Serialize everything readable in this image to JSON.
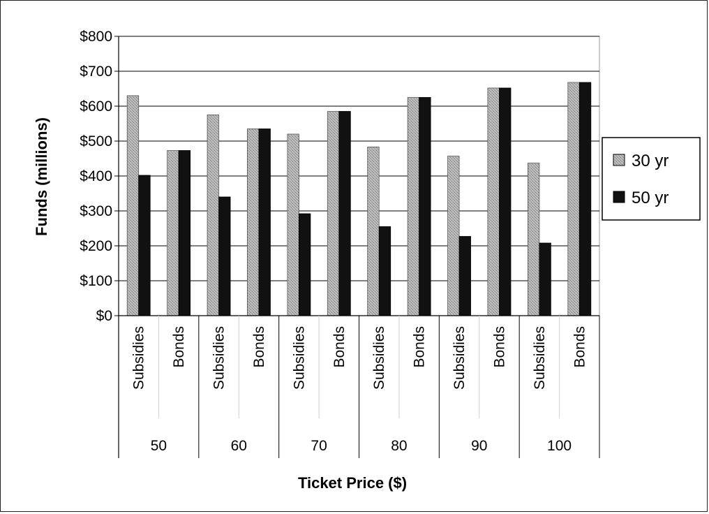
{
  "chart_data": {
    "type": "bar",
    "ylabel": "Funds (millions)",
    "xlabel": "Ticket Price ($)",
    "ylim": [
      0,
      800
    ],
    "y_ticks": [
      "$0",
      "$100",
      "$200",
      "$300",
      "$400",
      "$500",
      "$600",
      "$700",
      "$800"
    ],
    "y_tick_values": [
      0,
      100,
      200,
      300,
      400,
      500,
      600,
      700,
      800
    ],
    "groups": [
      "50",
      "60",
      "70",
      "80",
      "90",
      "100"
    ],
    "subcategories": [
      "Subsidies",
      "Bonds"
    ],
    "categories": [
      "50 Subsidies",
      "50 Bonds",
      "60 Subsidies",
      "60 Bonds",
      "70 Subsidies",
      "70 Bonds",
      "80 Subsidies",
      "80 Bonds",
      "90 Subsidies",
      "90 Bonds",
      "100 Subsidies",
      "100 Bonds"
    ],
    "series": [
      {
        "name": "30 yr",
        "values": [
          630,
          473,
          575,
          535,
          520,
          585,
          483,
          625,
          457,
          652,
          437,
          668
        ]
      },
      {
        "name": "50 yr",
        "values": [
          402,
          473,
          340,
          535,
          292,
          585,
          255,
          625,
          227,
          652,
          208,
          668
        ]
      }
    ],
    "grid": true,
    "legend": "right",
    "colors": {
      "series_1": "#a6a6a6",
      "series_2": "#111111"
    }
  }
}
